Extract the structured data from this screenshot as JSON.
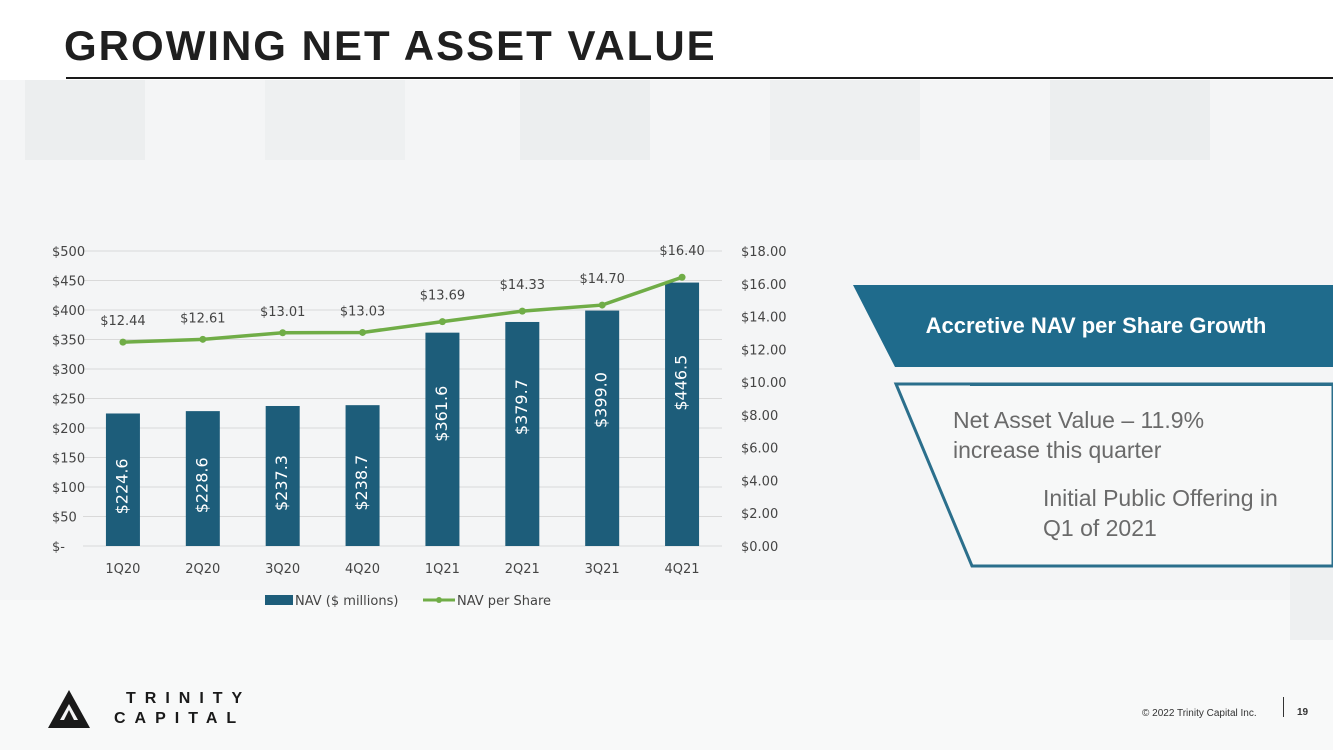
{
  "title": "GROWING NET ASSET VALUE",
  "colors": {
    "bar": "#1d5d7a",
    "line": "#70ad47",
    "callout_fill": "#1f6b8c",
    "callout_outline": "#2b6f8c"
  },
  "chart_data": {
    "type": "bar",
    "categories": [
      "1Q20",
      "2Q20",
      "3Q20",
      "4Q20",
      "1Q21",
      "2Q21",
      "3Q21",
      "4Q21"
    ],
    "series": [
      {
        "name": "NAV ($ millions)",
        "type": "bar",
        "axis": "left",
        "values": [
          224.6,
          228.6,
          237.3,
          238.7,
          361.6,
          379.7,
          399.0,
          446.5
        ],
        "labels": [
          "$224.6",
          "$228.6",
          "$237.3",
          "$238.7",
          "$361.6",
          "$379.7",
          "$399.0",
          "$446.5"
        ]
      },
      {
        "name": "NAV per Share",
        "type": "line",
        "axis": "right",
        "values": [
          12.44,
          12.61,
          13.01,
          13.03,
          13.69,
          14.33,
          14.7,
          16.4
        ],
        "labels": [
          "$12.44",
          "$12.61",
          "$13.01",
          "$13.03",
          "$13.69",
          "$14.33",
          "$14.70",
          "$16.40"
        ]
      }
    ],
    "left_axis": {
      "range": [
        0,
        500
      ],
      "ticks": [
        0,
        50,
        100,
        150,
        200,
        250,
        300,
        350,
        400,
        450,
        500
      ],
      "tick_labels": [
        "$-",
        "$50",
        "$100",
        "$150",
        "$200",
        "$250",
        "$300",
        "$350",
        "$400",
        "$450",
        "$500"
      ]
    },
    "right_axis": {
      "range": [
        0,
        18
      ],
      "ticks": [
        0,
        2,
        4,
        6,
        8,
        10,
        12,
        14,
        16,
        18
      ],
      "tick_labels": [
        "$0.00",
        "$2.00",
        "$4.00",
        "$6.00",
        "$8.00",
        "$10.00",
        "$12.00",
        "$14.00",
        "$16.00",
        "$18.00"
      ]
    },
    "grid": true,
    "legend": "bottom"
  },
  "callout": {
    "heading": "Accretive NAV per Share Growth",
    "bullet1": "Net Asset Value – 11.9% increase this quarter",
    "bullet2": "Initial Public Offering in Q1 of 2021"
  },
  "logo": {
    "line1": "TRINITY",
    "line2": "CAPITAL"
  },
  "footer": {
    "copyright": "© 2022 Trinity Capital Inc.",
    "page": "19"
  }
}
